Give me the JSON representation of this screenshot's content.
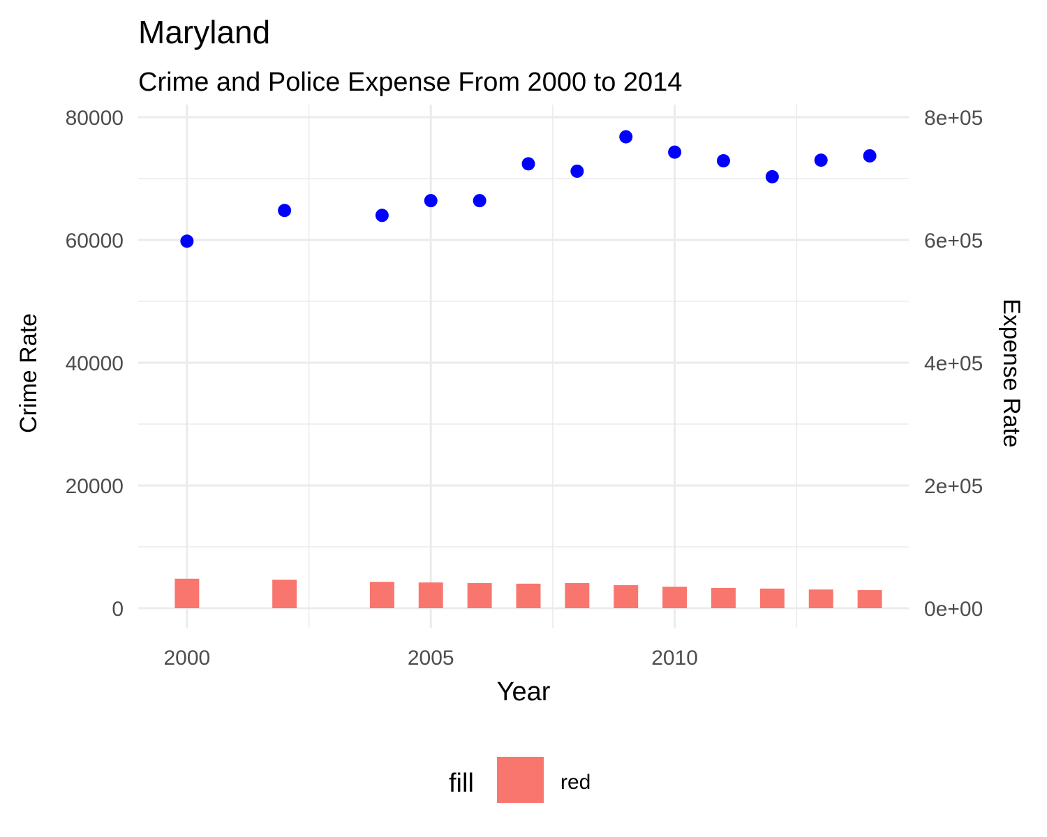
{
  "chart_data": {
    "type": "bar",
    "title": "Maryland",
    "subtitle": "Crime and Police Expense From 2000 to 2014",
    "xlabel": "Year",
    "ylabel_left": "Crime Rate",
    "ylabel_right": "Expense Rate",
    "xlim": [
      1999,
      2014.8
    ],
    "ylim_left": [
      0,
      80000
    ],
    "ylim_right": [
      0,
      800000
    ],
    "x_ticks": [
      2000,
      2005,
      2010
    ],
    "x_tick_labels": [
      "2000",
      "2005",
      "2010"
    ],
    "y_left_ticks": [
      0,
      20000,
      40000,
      60000,
      80000
    ],
    "y_left_tick_labels": [
      "0",
      "20000",
      "40000",
      "60000",
      "80000"
    ],
    "y_right_ticks": [
      0,
      200000,
      400000,
      600000,
      800000
    ],
    "y_right_tick_labels": [
      "0e+00",
      "2e+05",
      "4e+05",
      "6e+05",
      "8e+05"
    ],
    "grid": true,
    "legend": {
      "position": "bottom",
      "title": "fill",
      "items": [
        {
          "label": "red",
          "color": "#F8766D"
        }
      ]
    },
    "series": [
      {
        "type": "bar",
        "axis": "left",
        "color": "#F8766D",
        "points": [
          {
            "x": 2000,
            "y": 4800
          },
          {
            "x": 2002,
            "y": 4650
          },
          {
            "x": 2004,
            "y": 4300
          },
          {
            "x": 2005,
            "y": 4200
          },
          {
            "x": 2006,
            "y": 4100
          },
          {
            "x": 2007,
            "y": 4000
          },
          {
            "x": 2008,
            "y": 4100
          },
          {
            "x": 2009,
            "y": 3750
          },
          {
            "x": 2010,
            "y": 3500
          },
          {
            "x": 2011,
            "y": 3300
          },
          {
            "x": 2012,
            "y": 3200
          },
          {
            "x": 2013,
            "y": 3050
          },
          {
            "x": 2014,
            "y": 2950
          }
        ]
      },
      {
        "type": "scatter",
        "axis": "right",
        "color": "#0000FF",
        "points": [
          {
            "x": 2000,
            "y": 598000
          },
          {
            "x": 2002,
            "y": 648000
          },
          {
            "x": 2004,
            "y": 640000
          },
          {
            "x": 2005,
            "y": 664000
          },
          {
            "x": 2006,
            "y": 664000
          },
          {
            "x": 2007,
            "y": 724000
          },
          {
            "x": 2008,
            "y": 712000
          },
          {
            "x": 2009,
            "y": 768000
          },
          {
            "x": 2010,
            "y": 743000
          },
          {
            "x": 2011,
            "y": 729000
          },
          {
            "x": 2012,
            "y": 703000
          },
          {
            "x": 2013,
            "y": 730000
          },
          {
            "x": 2014,
            "y": 737000
          }
        ]
      }
    ]
  }
}
